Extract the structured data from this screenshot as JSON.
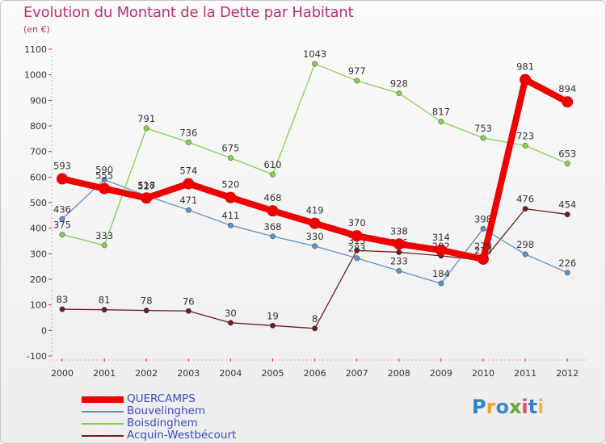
{
  "title": "Evolution du Montant de la Dette par Habitant",
  "subtitle": "(en €)",
  "brand": "Proxiti",
  "chart_data": {
    "type": "line",
    "title": "Evolution du Montant de la Dette par Habitant",
    "subtitle": "(en €)",
    "x": [
      "2000",
      "2001",
      "2002",
      "2003",
      "2004",
      "2005",
      "2006",
      "2007",
      "2008",
      "2009",
      "2010",
      "2011",
      "2012"
    ],
    "ylim": [
      -100,
      1100
    ],
    "yticks": [
      -100,
      0,
      100,
      200,
      300,
      400,
      500,
      600,
      700,
      800,
      900,
      1000,
      1100
    ],
    "grid": false,
    "legend_position": "bottom-left",
    "series": [
      {
        "name": "QUERCAMPS",
        "color": "#ee0000",
        "values": [
          593,
          555,
          518,
          574,
          520,
          468,
          419,
          370,
          338,
          314,
          279,
          981,
          894
        ]
      },
      {
        "name": "Bouvelinghem",
        "color": "#5f93c8",
        "values": [
          436,
          590,
          527,
          471,
          411,
          368,
          330,
          283,
          233,
          184,
          398,
          298,
          226
        ]
      },
      {
        "name": "Boisdinghem",
        "color": "#86d14e",
        "values": [
          375,
          333,
          791,
          736,
          675,
          610,
          1043,
          977,
          928,
          817,
          753,
          723,
          653
        ]
      },
      {
        "name": "Acquin-Westbécourt",
        "color": "#6e1c20",
        "values": [
          83,
          81,
          78,
          76,
          30,
          19,
          8,
          313,
          306,
          292,
          274,
          476,
          454
        ]
      }
    ]
  }
}
